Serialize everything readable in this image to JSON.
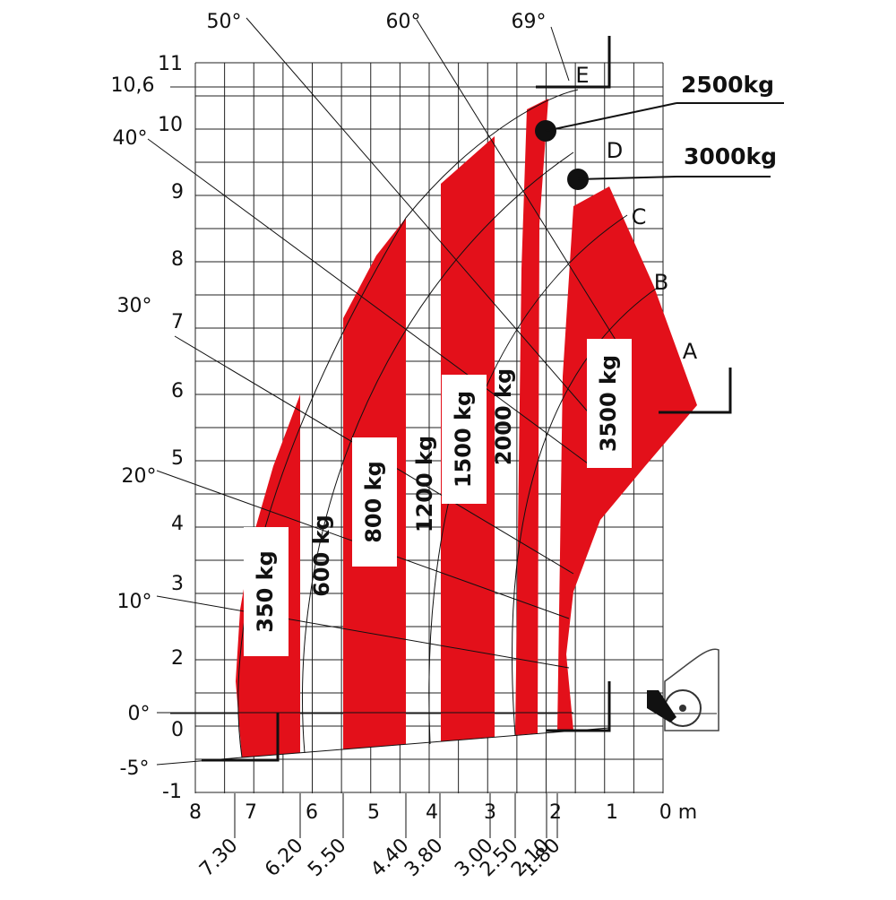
{
  "y_axis_labels": [
    "11",
    "10,6",
    "10",
    "9",
    "8",
    "7",
    "6",
    "5",
    "4",
    "3",
    "2",
    "0",
    "-1"
  ],
  "x_axis_labels": [
    "8",
    "7",
    "6",
    "5",
    "4",
    "3",
    "2",
    "1",
    "0 m"
  ],
  "distance_labels": [
    "7.30",
    "6.20",
    "5.50",
    "4.40",
    "3.80",
    "3.00",
    "2.50",
    "2.10",
    "1.80"
  ],
  "angle_labels": [
    "50°",
    "60°",
    "69°",
    "40°",
    "30°",
    "20°",
    "10°",
    "0°",
    "-5°"
  ],
  "load_labels": [
    "350 kg",
    "600 kg",
    "800 kg",
    "1200 kg",
    "1500 kg",
    "2000 kg",
    "3500 kg"
  ],
  "point_labels": [
    "A",
    "B",
    "C",
    "D",
    "E"
  ],
  "fork_loads": [
    "2500kg",
    "3000kg"
  ]
}
